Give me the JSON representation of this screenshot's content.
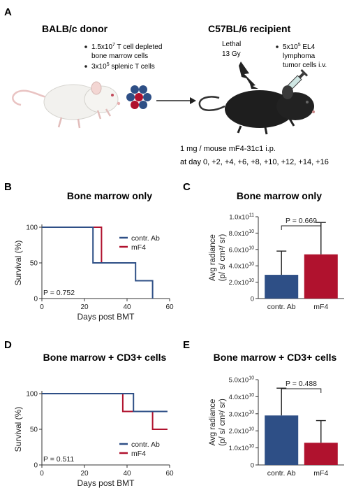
{
  "panelA": {
    "letter": "A",
    "donor_title": "BALB/c donor",
    "donor_items": [
      {
        "text_main": "1.5x10",
        "sup": "7",
        "text_rest": " T cell depleted",
        "line2": "bone marrow cells"
      },
      {
        "text_main": "3x10",
        "sup": "5",
        "text_rest": " splenic T cells",
        "line2": ""
      }
    ],
    "recipient_title": "C57BL/6 recipient",
    "lethal_line1": "Lethal",
    "lethal_line2": "13 Gy",
    "tumor_main": "5x10",
    "tumor_sup": "5",
    "tumor_rest": " EL4",
    "tumor_line2": "lymphoma",
    "tumor_line3": "tumor cells i.v.",
    "treatment_line1": "1 mg / mouse mF4-31c1 i.p.",
    "treatment_line2": "at day 0, +2, +4, +6, +8, +10, +12, +14, +16"
  },
  "colors": {
    "ctrl": "#2e4f86",
    "mf4": "#b0122e"
  },
  "chart_data": [
    {
      "panel": "B",
      "type": "line",
      "title": "Bone marrow only",
      "xlabel": "Days post BMT",
      "ylabel": "Survival (%)",
      "xlim": [
        0,
        60
      ],
      "ylim": [
        0,
        100
      ],
      "xticks": [
        0,
        20,
        40,
        60
      ],
      "yticks": [
        0,
        50,
        100
      ],
      "pvalue": "P = 0.752",
      "legend_position": "right",
      "series": [
        {
          "name": "contr. Ab",
          "color": "#2e4f86",
          "steps": [
            [
              0,
              100
            ],
            [
              24,
              100
            ],
            [
              24,
              50
            ],
            [
              44,
              50
            ],
            [
              44,
              25
            ],
            [
              52,
              25
            ],
            [
              52,
              0
            ]
          ]
        },
        {
          "name": "mF4",
          "color": "#b0122e",
          "steps": [
            [
              0,
              100
            ],
            [
              28,
              100
            ],
            [
              28,
              50
            ]
          ]
        }
      ]
    },
    {
      "panel": "C",
      "type": "bar",
      "title": "Bone marrow only",
      "ylabel_line1": "Avg radiance",
      "ylabel_line2": "(p/ s/ cm²/ sr)",
      "categories": [
        "contr. Ab",
        "mF4"
      ],
      "values": [
        29000000000.0,
        54000000000.0
      ],
      "errors": [
        29000000000.0,
        39000000000.0
      ],
      "colors": [
        "#2e4f86",
        "#b0122e"
      ],
      "ylim": [
        0,
        100000000000.0
      ],
      "yticks": [
        {
          "m": "0",
          "e": ""
        },
        {
          "m": "2.0x10",
          "e": "10"
        },
        {
          "m": "4.0x10",
          "e": "10"
        },
        {
          "m": "6.0x10",
          "e": "10"
        },
        {
          "m": "8.0x10",
          "e": "10"
        },
        {
          "m": "1.0x10",
          "e": "11"
        }
      ],
      "ytick_values": [
        0,
        20000000000.0,
        40000000000.0,
        60000000000.0,
        80000000000.0,
        100000000000.0
      ],
      "pvalue": "P = 0.669"
    },
    {
      "panel": "D",
      "type": "line",
      "title": "Bone marrow + CD3+ cells",
      "xlabel": "Days post BMT",
      "ylabel": "Survival (%)",
      "xlim": [
        0,
        60
      ],
      "ylim": [
        0,
        100
      ],
      "xticks": [
        0,
        20,
        40,
        60
      ],
      "yticks": [
        0,
        50,
        100
      ],
      "pvalue": "P = 0.511",
      "legend_position": "bottom-right",
      "series": [
        {
          "name": "contr. Ab",
          "color": "#2e4f86",
          "steps": [
            [
              0,
              100
            ],
            [
              43,
              100
            ],
            [
              43,
              75
            ],
            [
              59,
              75
            ]
          ]
        },
        {
          "name": "mF4",
          "color": "#b0122e",
          "steps": [
            [
              0,
              100
            ],
            [
              38,
              100
            ],
            [
              38,
              75
            ],
            [
              52,
              75
            ],
            [
              52,
              50
            ],
            [
              59,
              50
            ]
          ]
        }
      ]
    },
    {
      "panel": "E",
      "type": "bar",
      "title": "Bone marrow + CD3+ cells",
      "ylabel_line1": "Avg radiance",
      "ylabel_line2": "(p/ s/ cm²/ sr)",
      "categories": [
        "contr. Ab",
        "mF4"
      ],
      "values": [
        29000000000.0,
        13000000000.0
      ],
      "errors": [
        16000000000.0,
        13000000000.0
      ],
      "colors": [
        "#2e4f86",
        "#b0122e"
      ],
      "ylim": [
        0,
        50000000000.0
      ],
      "yticks": [
        {
          "m": "0",
          "e": ""
        },
        {
          "m": "1.0x10",
          "e": "10"
        },
        {
          "m": "2.0x10",
          "e": "10"
        },
        {
          "m": "3.0x10",
          "e": "10"
        },
        {
          "m": "4.0x10",
          "e": "10"
        },
        {
          "m": "5.0x10",
          "e": "10"
        }
      ],
      "ytick_values": [
        0,
        10000000000.0,
        20000000000.0,
        30000000000.0,
        40000000000.0,
        50000000000.0
      ],
      "pvalue": "P = 0.488"
    }
  ]
}
